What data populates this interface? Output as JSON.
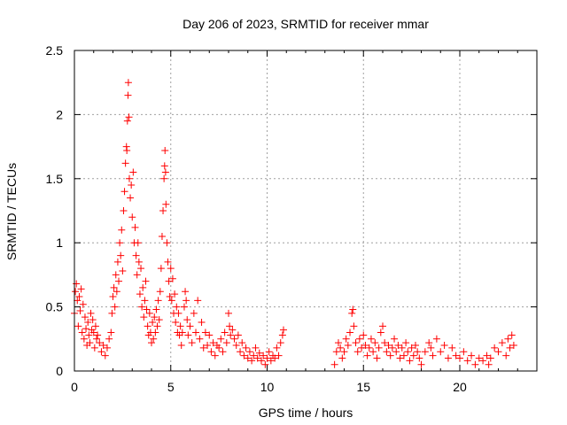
{
  "chart_data": {
    "type": "scatter",
    "title": "Day 206 of 2023, SRMTID for receiver mmar",
    "xlabel": "GPS time / hours",
    "ylabel": "SRMTID / TECUs",
    "xlim": [
      0,
      24
    ],
    "ylim": [
      0,
      2.5
    ],
    "xticks": [
      0,
      5,
      10,
      15,
      20
    ],
    "yticks": [
      0,
      0.5,
      1,
      1.5,
      2,
      2.5
    ],
    "xtick_labels": [
      "0",
      "5",
      "10",
      "15",
      "20"
    ],
    "ytick_labels": [
      "0",
      "0.5",
      "1",
      "1.5",
      "2",
      "2.5"
    ],
    "grid": true,
    "marker": "+",
    "series": [
      {
        "name": "SRMTID",
        "color": "#ff0000",
        "points": [
          [
            0.0,
            0.45
          ],
          [
            0.05,
            0.62
          ],
          [
            0.1,
            0.68
          ],
          [
            0.15,
            0.55
          ],
          [
            0.2,
            0.35
          ],
          [
            0.25,
            0.58
          ],
          [
            0.3,
            0.47
          ],
          [
            0.35,
            0.64
          ],
          [
            0.4,
            0.3
          ],
          [
            0.45,
            0.52
          ],
          [
            0.5,
            0.25
          ],
          [
            0.55,
            0.42
          ],
          [
            0.6,
            0.33
          ],
          [
            0.65,
            0.2
          ],
          [
            0.7,
            0.38
          ],
          [
            0.75,
            0.28
          ],
          [
            0.8,
            0.22
          ],
          [
            0.85,
            0.45
          ],
          [
            0.9,
            0.32
          ],
          [
            0.95,
            0.4
          ],
          [
            1.0,
            0.3
          ],
          [
            1.05,
            0.18
          ],
          [
            1.1,
            0.35
          ],
          [
            1.15,
            0.25
          ],
          [
            1.2,
            0.28
          ],
          [
            1.3,
            0.22
          ],
          [
            1.4,
            0.15
          ],
          [
            1.5,
            0.2
          ],
          [
            1.6,
            0.12
          ],
          [
            1.7,
            0.18
          ],
          [
            1.8,
            0.25
          ],
          [
            1.9,
            0.3
          ],
          [
            1.95,
            0.45
          ],
          [
            2.0,
            0.58
          ],
          [
            2.05,
            0.65
          ],
          [
            2.1,
            0.5
          ],
          [
            2.15,
            0.75
          ],
          [
            2.2,
            0.62
          ],
          [
            2.25,
            0.85
          ],
          [
            2.3,
            0.7
          ],
          [
            2.35,
            1.0
          ],
          [
            2.4,
            0.9
          ],
          [
            2.45,
            1.1
          ],
          [
            2.5,
            0.78
          ],
          [
            2.55,
            1.25
          ],
          [
            2.6,
            1.4
          ],
          [
            2.65,
            1.62
          ],
          [
            2.7,
            1.75
          ],
          [
            2.72,
            1.72
          ],
          [
            2.75,
            1.95
          ],
          [
            2.78,
            2.15
          ],
          [
            2.8,
            2.25
          ],
          [
            2.83,
            1.98
          ],
          [
            2.85,
            1.5
          ],
          [
            2.9,
            1.35
          ],
          [
            2.95,
            1.45
          ],
          [
            3.0,
            1.2
          ],
          [
            3.05,
            1.55
          ],
          [
            3.1,
            1.0
          ],
          [
            3.15,
            1.12
          ],
          [
            3.2,
            0.9
          ],
          [
            3.25,
            0.75
          ],
          [
            3.3,
            1.0
          ],
          [
            3.35,
            0.85
          ],
          [
            3.4,
            0.6
          ],
          [
            3.45,
            0.8
          ],
          [
            3.5,
            0.5
          ],
          [
            3.55,
            0.65
          ],
          [
            3.6,
            0.42
          ],
          [
            3.65,
            0.55
          ],
          [
            3.7,
            0.7
          ],
          [
            3.75,
            0.48
          ],
          [
            3.8,
            0.35
          ],
          [
            3.85,
            0.28
          ],
          [
            3.9,
            0.45
          ],
          [
            3.95,
            0.3
          ],
          [
            4.0,
            0.22
          ],
          [
            4.05,
            0.38
          ],
          [
            4.1,
            0.25
          ],
          [
            4.15,
            0.42
          ],
          [
            4.2,
            0.3
          ],
          [
            4.25,
            0.48
          ],
          [
            4.3,
            0.35
          ],
          [
            4.35,
            0.55
          ],
          [
            4.4,
            0.4
          ],
          [
            4.45,
            0.62
          ],
          [
            4.5,
            0.8
          ],
          [
            4.55,
            1.05
          ],
          [
            4.6,
            1.25
          ],
          [
            4.65,
            1.5
          ],
          [
            4.68,
            1.6
          ],
          [
            4.7,
            1.72
          ],
          [
            4.73,
            1.55
          ],
          [
            4.75,
            1.3
          ],
          [
            4.8,
            1.0
          ],
          [
            4.85,
            0.85
          ],
          [
            4.9,
            0.7
          ],
          [
            4.95,
            0.58
          ],
          [
            5.0,
            0.8
          ],
          [
            5.05,
            0.55
          ],
          [
            5.1,
            0.72
          ],
          [
            5.15,
            0.45
          ],
          [
            5.2,
            0.6
          ],
          [
            5.25,
            0.38
          ],
          [
            5.3,
            0.5
          ],
          [
            5.35,
            0.3
          ],
          [
            5.4,
            0.45
          ],
          [
            5.45,
            0.28
          ],
          [
            5.5,
            0.35
          ],
          [
            5.55,
            0.2
          ],
          [
            5.6,
            0.3
          ],
          [
            5.7,
            0.5
          ],
          [
            5.75,
            0.62
          ],
          [
            5.8,
            0.55
          ],
          [
            5.85,
            0.4
          ],
          [
            5.9,
            0.28
          ],
          [
            6.0,
            0.35
          ],
          [
            6.1,
            0.22
          ],
          [
            6.2,
            0.45
          ],
          [
            6.3,
            0.3
          ],
          [
            6.4,
            0.55
          ],
          [
            6.5,
            0.25
          ],
          [
            6.6,
            0.38
          ],
          [
            6.7,
            0.18
          ],
          [
            6.8,
            0.3
          ],
          [
            6.9,
            0.2
          ],
          [
            7.0,
            0.28
          ],
          [
            7.1,
            0.15
          ],
          [
            7.2,
            0.22
          ],
          [
            7.3,
            0.12
          ],
          [
            7.4,
            0.2
          ],
          [
            7.5,
            0.18
          ],
          [
            7.6,
            0.25
          ],
          [
            7.7,
            0.15
          ],
          [
            7.8,
            0.3
          ],
          [
            7.9,
            0.22
          ],
          [
            8.0,
            0.45
          ],
          [
            8.05,
            0.35
          ],
          [
            8.1,
            0.28
          ],
          [
            8.2,
            0.32
          ],
          [
            8.3,
            0.25
          ],
          [
            8.4,
            0.2
          ],
          [
            8.5,
            0.28
          ],
          [
            8.6,
            0.15
          ],
          [
            8.7,
            0.22
          ],
          [
            8.8,
            0.12
          ],
          [
            8.9,
            0.18
          ],
          [
            9.0,
            0.1
          ],
          [
            9.1,
            0.15
          ],
          [
            9.2,
            0.08
          ],
          [
            9.3,
            0.12
          ],
          [
            9.4,
            0.18
          ],
          [
            9.5,
            0.1
          ],
          [
            9.6,
            0.14
          ],
          [
            9.7,
            0.08
          ],
          [
            9.8,
            0.12
          ],
          [
            9.9,
            0.05
          ],
          [
            10.0,
            0.1
          ],
          [
            10.1,
            0.15
          ],
          [
            10.2,
            0.08
          ],
          [
            10.3,
            0.12
          ],
          [
            10.4,
            0.1
          ],
          [
            10.5,
            0.18
          ],
          [
            10.6,
            0.12
          ],
          [
            10.7,
            0.22
          ],
          [
            10.8,
            0.28
          ],
          [
            10.85,
            0.32
          ],
          [
            13.5,
            0.05
          ],
          [
            13.6,
            0.15
          ],
          [
            13.7,
            0.22
          ],
          [
            13.8,
            0.18
          ],
          [
            13.9,
            0.1
          ],
          [
            14.0,
            0.15
          ],
          [
            14.1,
            0.25
          ],
          [
            14.2,
            0.2
          ],
          [
            14.3,
            0.3
          ],
          [
            14.4,
            0.45
          ],
          [
            14.45,
            0.48
          ],
          [
            14.5,
            0.35
          ],
          [
            14.6,
            0.22
          ],
          [
            14.7,
            0.15
          ],
          [
            14.8,
            0.25
          ],
          [
            14.9,
            0.18
          ],
          [
            15.0,
            0.28
          ],
          [
            15.1,
            0.2
          ],
          [
            15.2,
            0.12
          ],
          [
            15.3,
            0.18
          ],
          [
            15.4,
            0.25
          ],
          [
            15.5,
            0.15
          ],
          [
            15.6,
            0.22
          ],
          [
            15.7,
            0.1
          ],
          [
            15.8,
            0.18
          ],
          [
            15.9,
            0.3
          ],
          [
            16.0,
            0.35
          ],
          [
            16.1,
            0.22
          ],
          [
            16.2,
            0.15
          ],
          [
            16.3,
            0.2
          ],
          [
            16.4,
            0.12
          ],
          [
            16.5,
            0.18
          ],
          [
            16.6,
            0.25
          ],
          [
            16.7,
            0.15
          ],
          [
            16.8,
            0.2
          ],
          [
            16.9,
            0.1
          ],
          [
            17.0,
            0.18
          ],
          [
            17.1,
            0.12
          ],
          [
            17.2,
            0.22
          ],
          [
            17.3,
            0.15
          ],
          [
            17.4,
            0.08
          ],
          [
            17.5,
            0.18
          ],
          [
            17.6,
            0.12
          ],
          [
            17.7,
            0.2
          ],
          [
            17.8,
            0.15
          ],
          [
            17.9,
            0.1
          ],
          [
            18.0,
            0.05
          ],
          [
            18.2,
            0.15
          ],
          [
            18.4,
            0.22
          ],
          [
            18.5,
            0.18
          ],
          [
            18.6,
            0.12
          ],
          [
            18.8,
            0.25
          ],
          [
            19.0,
            0.15
          ],
          [
            19.2,
            0.2
          ],
          [
            19.4,
            0.1
          ],
          [
            19.6,
            0.18
          ],
          [
            19.8,
            0.12
          ],
          [
            20.0,
            0.1
          ],
          [
            20.2,
            0.15
          ],
          [
            20.4,
            0.08
          ],
          [
            20.6,
            0.12
          ],
          [
            20.8,
            0.05
          ],
          [
            21.0,
            0.1
          ],
          [
            21.2,
            0.08
          ],
          [
            21.4,
            0.12
          ],
          [
            21.5,
            0.05
          ],
          [
            21.6,
            0.1
          ],
          [
            21.8,
            0.18
          ],
          [
            22.0,
            0.15
          ],
          [
            22.2,
            0.22
          ],
          [
            22.4,
            0.12
          ],
          [
            22.5,
            0.25
          ],
          [
            22.6,
            0.18
          ],
          [
            22.7,
            0.28
          ],
          [
            22.8,
            0.2
          ]
        ]
      }
    ]
  }
}
